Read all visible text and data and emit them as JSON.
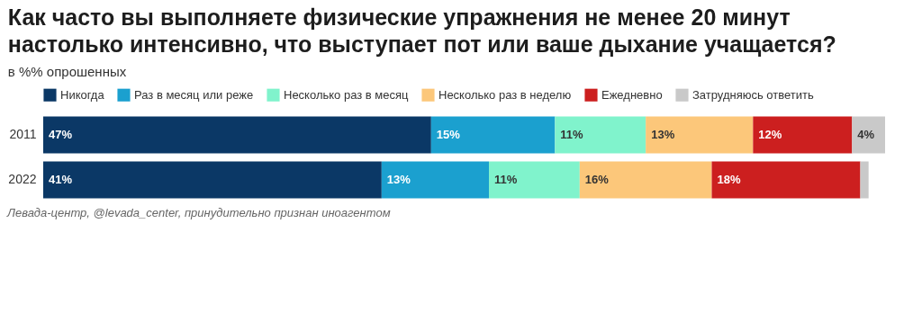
{
  "chart_data": {
    "type": "bar",
    "orientation": "horizontal",
    "stacked": true,
    "title": "Как часто вы выполняете физические упражнения не менее 20 минут настолько интенсивно, что выступает пот или ваше дыхание учащается?",
    "subtitle": "в %% опрошенных",
    "categories": [
      "2011",
      "2022"
    ],
    "xlim": [
      0,
      102
    ],
    "legend": "top left",
    "tick_labels": "y",
    "grid": false,
    "series": [
      {
        "name": "Никогда",
        "color": "#0b3866",
        "values": [
          47,
          41
        ],
        "value_labels": [
          "47%",
          "41%"
        ]
      },
      {
        "name": "Раз в месяц или реже",
        "color": "#1ba0cf",
        "values": [
          15,
          13
        ],
        "value_labels": [
          "15%",
          "13%"
        ]
      },
      {
        "name": "Несколько раз в месяц",
        "color": "#80f3cc",
        "values": [
          11,
          11
        ],
        "value_labels": [
          "11%",
          "11%"
        ]
      },
      {
        "name": "Несколько раз в неделю",
        "color": "#fcc77a",
        "values": [
          13,
          16
        ],
        "value_labels": [
          "13%",
          "16%"
        ]
      },
      {
        "name": "Ежедневно",
        "color": "#cc1f1f",
        "values": [
          12,
          18
        ],
        "value_labels": [
          "12%",
          "18%"
        ]
      },
      {
        "name": "Затрудняюсь ответить",
        "color": "#c9c9c9",
        "values": [
          4,
          1
        ],
        "value_labels": [
          "4%",
          null
        ]
      }
    ],
    "annotations": [
      "Левада-центр, @levada_center, принудительно признан иноагентом"
    ]
  }
}
